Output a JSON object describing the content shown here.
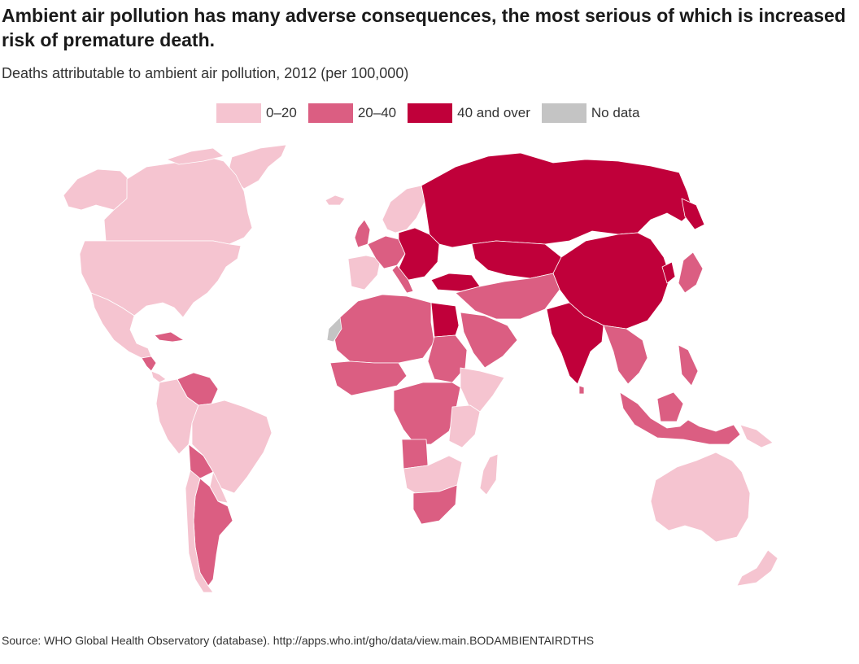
{
  "title": "Ambient air pollution has many adverse consequences, the most serious of which is increased risk of premature death.",
  "subtitle": "Deaths attributable to ambient air pollution, 2012 (per 100,000)",
  "legend": [
    {
      "label": "0–20",
      "color": "#f5c4d0"
    },
    {
      "label": "20–40",
      "color": "#db5e82"
    },
    {
      "label": "40 and over",
      "color": "#c0003a"
    },
    {
      "label": "No data",
      "color": "#c4c4c4"
    }
  ],
  "source": "Source: WHO Global Health Observatory (database). http://apps.who.int/gho/data/view.main.BODAMBIENTAIRDTHS"
}
